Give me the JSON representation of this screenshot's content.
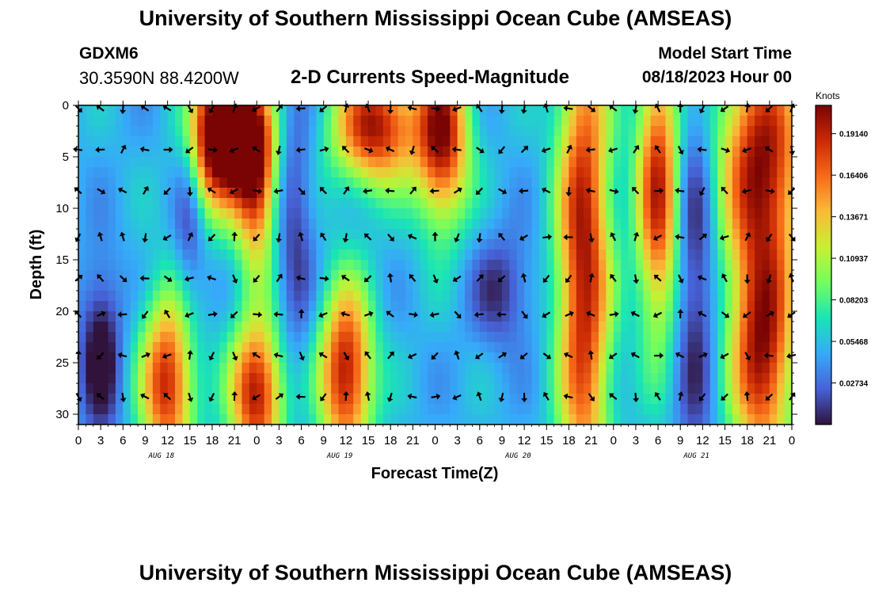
{
  "page": {
    "title_top": "University of Southern Mississippi Ocean Cube (AMSEAS)",
    "title_bottom": "University of Southern Mississippi Ocean Cube (AMSEAS)",
    "station": "GDXM6",
    "coords": "30.3590N  88.4200W",
    "subtitle": "2-D Currents Speed-Magnitude",
    "model_start_label": "Model Start Time",
    "model_start_value": "08/18/2023 Hour 00"
  },
  "chart_data": {
    "type": "heatmap",
    "title": "2-D Currents Speed-Magnitude",
    "xlabel": "Forecast Time(Z)",
    "ylabel": "Depth (ft)",
    "x_hours_range": [
      0,
      96
    ],
    "x_tick_labels": [
      "0",
      "3",
      "6",
      "9",
      "12",
      "15",
      "18",
      "21",
      "0",
      "3",
      "6",
      "9",
      "12",
      "15",
      "18",
      "21",
      "0",
      "3",
      "6",
      "9",
      "12",
      "15",
      "18",
      "21",
      "0",
      "3",
      "6",
      "9",
      "12",
      "15",
      "18",
      "21",
      "0"
    ],
    "day_labels": [
      {
        "label": "AUG 18",
        "hour": 12
      },
      {
        "label": "AUG 19",
        "hour": 36
      },
      {
        "label": "AUG 20",
        "hour": 60
      },
      {
        "label": "AUG 21",
        "hour": 84
      }
    ],
    "y_range": [
      0,
      31
    ],
    "y_ticks": [
      0,
      5,
      10,
      15,
      20,
      25,
      30
    ],
    "y_tick_labels": [
      "0",
      "5",
      "10",
      "15",
      "20",
      "25",
      "30"
    ],
    "colorbar": {
      "unit": "Knots",
      "range": [
        0.0,
        0.21
      ],
      "labels": [
        "0.19140",
        "0.16406",
        "0.13671",
        "0.10937",
        "0.08203",
        "0.05468",
        "0.02734"
      ],
      "label_values": [
        0.1914,
        0.16406,
        0.13671,
        0.10937,
        0.08203,
        0.05468,
        0.02734
      ],
      "colors": [
        "#30123b",
        "#4662d7",
        "#36aaf9",
        "#1ae4b6",
        "#72fe5e",
        "#c8ef34",
        "#faba39",
        "#f66b19",
        "#ca2a04",
        "#7a0403"
      ]
    },
    "arrow_depths": [
      0,
      4,
      8,
      12.5,
      16.5,
      20,
      24,
      28
    ],
    "arrow_hours": [
      0,
      3,
      6,
      9,
      12,
      15,
      18,
      21,
      24,
      27,
      30,
      33,
      36,
      39,
      42,
      45,
      48,
      51,
      54,
      57,
      60,
      63,
      66,
      69,
      72,
      75,
      78,
      81,
      84,
      87,
      90,
      93,
      96
    ],
    "speed_field": {
      "base": 0.05,
      "features": [
        {
          "hour": 18,
          "depth": 3,
          "sigma_h": 2.5,
          "sigma_d": 5,
          "amp": 0.16
        },
        {
          "hour": 22,
          "depth": 3,
          "sigma_h": 2.5,
          "sigma_d": 4,
          "amp": 0.14
        },
        {
          "hour": 24,
          "depth": 8,
          "sigma_h": 2,
          "sigma_d": 6,
          "amp": 0.12
        },
        {
          "hour": 40,
          "depth": 2,
          "sigma_h": 4,
          "sigma_d": 4,
          "amp": 0.15
        },
        {
          "hour": 49,
          "depth": 3,
          "sigma_h": 2.5,
          "sigma_d": 6,
          "amp": 0.15
        },
        {
          "hour": 68,
          "depth": 15,
          "sigma_h": 2.5,
          "sigma_d": 18,
          "amp": 0.15
        },
        {
          "hour": 78,
          "depth": 8,
          "sigma_h": 2,
          "sigma_d": 10,
          "amp": 0.14
        },
        {
          "hour": 92,
          "depth": 5,
          "sigma_h": 4,
          "sigma_d": 8,
          "amp": 0.15
        },
        {
          "hour": 92,
          "depth": 24,
          "sigma_h": 3,
          "sigma_d": 8,
          "amp": 0.15
        },
        {
          "hour": 12,
          "depth": 27,
          "sigma_h": 2.5,
          "sigma_d": 6,
          "amp": 0.14
        },
        {
          "hour": 24,
          "depth": 28,
          "sigma_h": 2.5,
          "sigma_d": 5,
          "amp": 0.15
        },
        {
          "hour": 36,
          "depth": 26,
          "sigma_h": 2.5,
          "sigma_d": 6,
          "amp": 0.15
        },
        {
          "hour": 3,
          "depth": 24,
          "sigma_h": 2,
          "sigma_d": 6,
          "amp": -0.06
        },
        {
          "hour": 15,
          "depth": 10,
          "sigma_h": 1.5,
          "sigma_d": 8,
          "amp": -0.04
        },
        {
          "hour": 29,
          "depth": 12,
          "sigma_h": 2,
          "sigma_d": 10,
          "amp": -0.04
        },
        {
          "hour": 57,
          "depth": 18,
          "sigma_h": 3,
          "sigma_d": 4,
          "amp": -0.04
        },
        {
          "hour": 83,
          "depth": 16,
          "sigma_h": 2,
          "sigma_d": 14,
          "amp": -0.05
        }
      ]
    },
    "source_grid_note": "Values reconstructed from colors; units in knots."
  }
}
